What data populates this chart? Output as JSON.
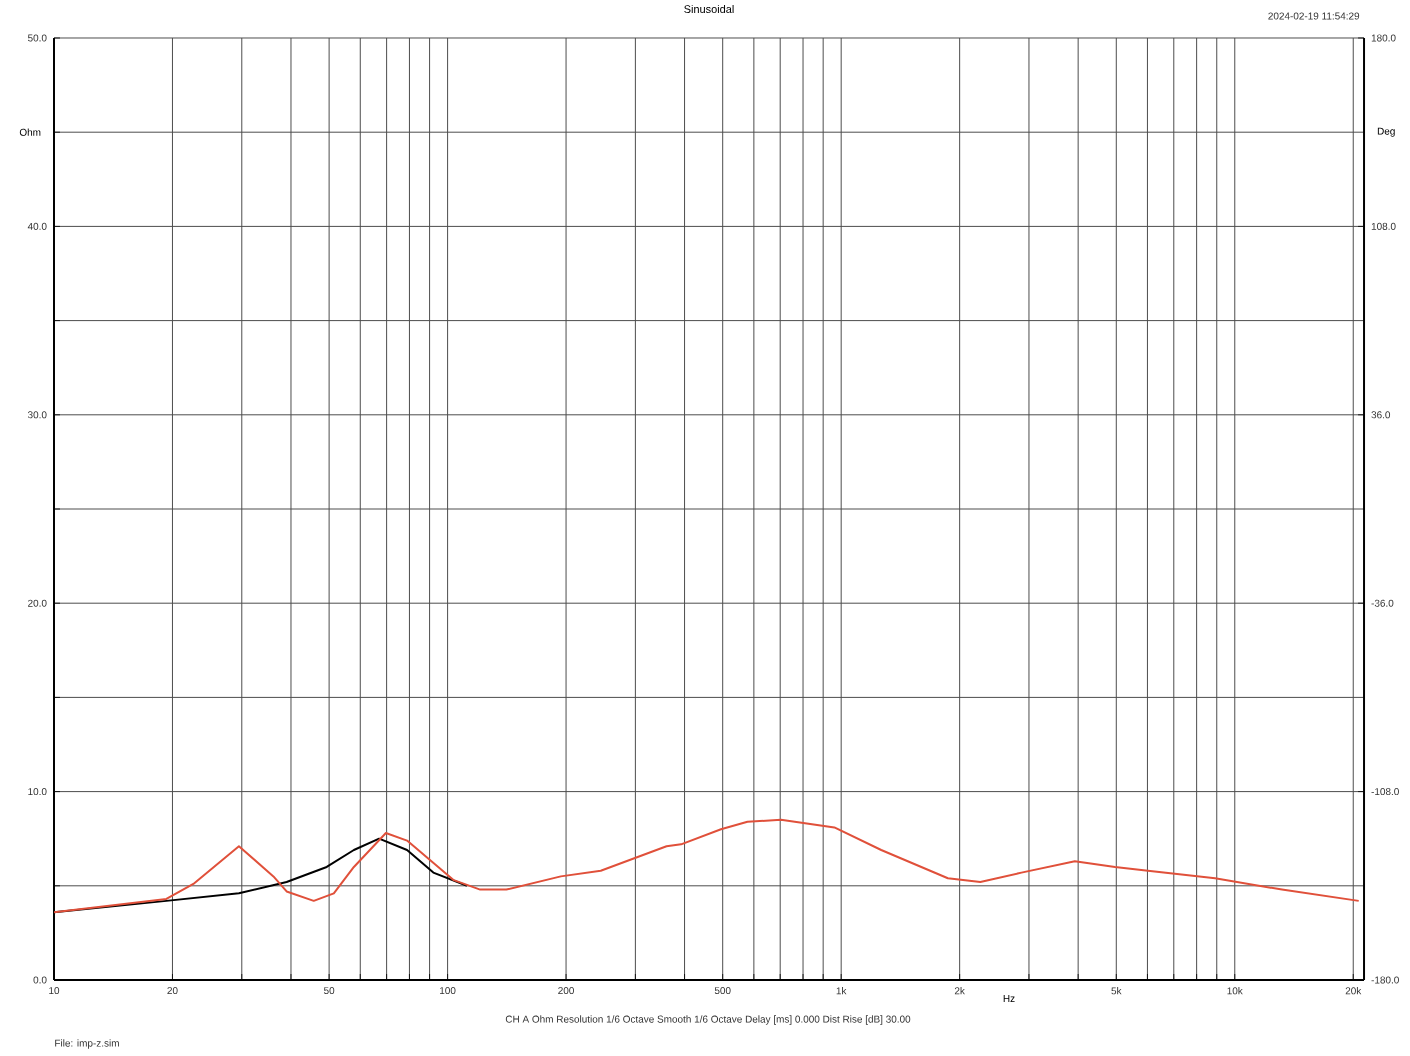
{
  "chart_data": {
    "type": "line",
    "title": "Sinusoidal",
    "xlabel": "Hz",
    "ylabel": "Ohm",
    "y2label": "Deg",
    "annotations": [
      "2024-02-19 11:54:29",
      "CH A   Ohm   Resolution 1/6 Octave   Smooth 1/6 Octave   Delay [ms] 0.000   Dist Rise [dB] 30.00",
      "File: imp-z.sim"
    ],
    "log": "x",
    "grid": true,
    "marker": "none",
    "line_style": "solid",
    "xlim": [
      10,
      21300
    ],
    "ylim": [
      0,
      50
    ],
    "y2lim": [
      -180,
      180
    ],
    "xticks": [
      10,
      20,
      {
        "value": 30,
        "label": null
      },
      {
        "value": 40,
        "label": null
      },
      50,
      {
        "value": 60,
        "label": null
      },
      {
        "value": 70,
        "label": null
      },
      {
        "value": 80,
        "label": null
      },
      {
        "value": 90,
        "label": null
      },
      100,
      200,
      {
        "value": 300,
        "label": null
      },
      {
        "value": 400,
        "label": null
      },
      500,
      {
        "value": 600,
        "label": null
      },
      {
        "value": 700,
        "label": null
      },
      {
        "value": 800,
        "label": null
      },
      {
        "value": 900,
        "label": null
      },
      {
        "value": 1000,
        "label": "1k"
      },
      {
        "value": 2000,
        "label": "2k"
      },
      {
        "value": 3000,
        "label": null
      },
      {
        "value": 4000,
        "label": null
      },
      {
        "value": 5000,
        "label": "5k"
      },
      {
        "value": 6000,
        "label": null
      },
      {
        "value": 7000,
        "label": null
      },
      {
        "value": 8000,
        "label": null
      },
      {
        "value": 9000,
        "label": null
      },
      {
        "value": 10000,
        "label": "10k"
      },
      {
        "value": 20000,
        "label": "20k"
      }
    ],
    "yticks": [
      {
        "value": 0,
        "label": "0.0"
      },
      {
        "value": 5,
        "label": null
      },
      {
        "value": 10,
        "label": "10.0"
      },
      {
        "value": 15,
        "label": null
      },
      {
        "value": 20,
        "label": "20.0"
      },
      {
        "value": 25,
        "label": null
      },
      {
        "value": 30,
        "label": "30.0"
      },
      {
        "value": 35,
        "label": null
      },
      {
        "value": 40,
        "label": "40.0"
      },
      {
        "value": 45,
        "label": null
      },
      {
        "value": 50,
        "label": "50.0"
      }
    ],
    "y2ticks": [
      {
        "value": -180,
        "label": "-180.0"
      },
      {
        "value": -108,
        "label": "-108.0"
      },
      {
        "value": -36,
        "label": "-36.0"
      },
      {
        "value": 36,
        "label": "36.0"
      },
      {
        "value": 108,
        "label": "108.0"
      },
      {
        "value": 180,
        "label": "180.0"
      }
    ],
    "series": [
      {
        "color": "#000000",
        "x": [
          10,
          19.3,
          29.5,
          39,
          49.3,
          57.8,
          67,
          78.9,
          92,
          112
        ],
        "values": [
          3.6,
          4.2,
          4.6,
          5.2,
          6.0,
          6.9,
          7.5,
          6.9,
          5.7,
          5.0
        ]
      },
      {
        "color": "#e0503a",
        "x": [
          10,
          19.3,
          22.6,
          29.5,
          36.1,
          39,
          45.7,
          51.4,
          57.8,
          69.7,
          78.9,
          103.7,
          121,
          141,
          194,
          245,
          360,
          392,
          495,
          578,
          703,
          961,
          1264,
          1867,
          2257,
          2871,
          3924,
          4963,
          6018,
          8913,
          13180,
          20650
        ],
        "values": [
          3.6,
          4.3,
          5.1,
          7.1,
          5.5,
          4.7,
          4.2,
          4.6,
          6.0,
          7.8,
          7.4,
          5.3,
          4.8,
          4.8,
          5.5,
          5.8,
          7.1,
          7.2,
          8.0,
          8.4,
          8.5,
          8.1,
          6.9,
          5.4,
          5.2,
          5.7,
          6.3,
          6.0,
          5.8,
          5.4,
          4.8,
          4.2
        ]
      }
    ]
  }
}
